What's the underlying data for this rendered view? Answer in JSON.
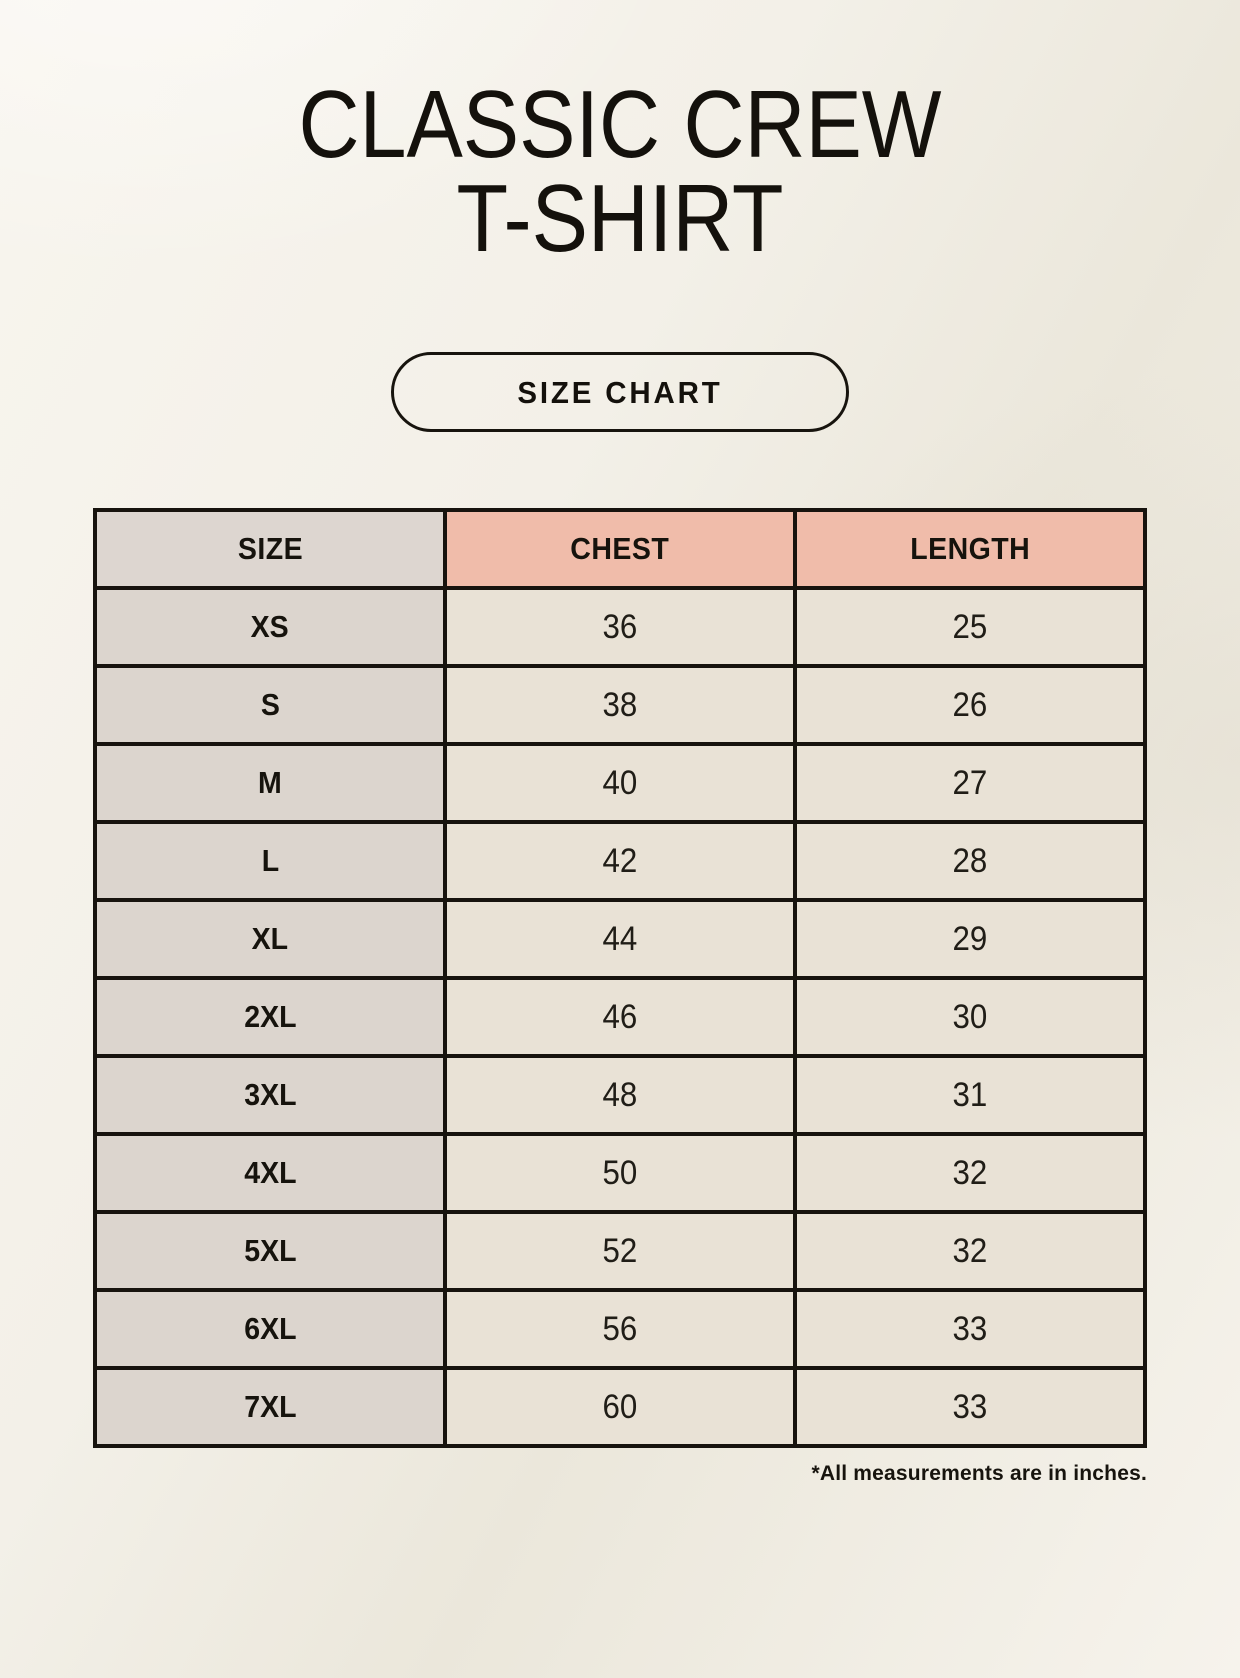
{
  "header": {
    "title_line1": "CLASSIC CREW",
    "title_line2": "T-SHIRT",
    "badge_label": "SIZE CHART"
  },
  "table": {
    "headers": [
      "SIZE",
      "CHEST",
      "LENGTH"
    ],
    "rows": [
      {
        "size": "XS",
        "chest": "36",
        "length": "25"
      },
      {
        "size": "S",
        "chest": "38",
        "length": "26"
      },
      {
        "size": "M",
        "chest": "40",
        "length": "27"
      },
      {
        "size": "L",
        "chest": "42",
        "length": "28"
      },
      {
        "size": "XL",
        "chest": "44",
        "length": "29"
      },
      {
        "size": "2XL",
        "chest": "46",
        "length": "30"
      },
      {
        "size": "3XL",
        "chest": "48",
        "length": "31"
      },
      {
        "size": "4XL",
        "chest": "50",
        "length": "32"
      },
      {
        "size": "5XL",
        "chest": "52",
        "length": "32"
      },
      {
        "size": "6XL",
        "chest": "56",
        "length": "33"
      },
      {
        "size": "7XL",
        "chest": "60",
        "length": "33"
      }
    ]
  },
  "footnote": {
    "text": "*All measurements are in inches."
  },
  "colors": {
    "page_background": "#f3f0e8",
    "header_accent": "#f0bcaa",
    "size_column": "#dcd5ce",
    "data_cell": "#e9e2d6",
    "border": "#17130e",
    "text": "#16130d"
  }
}
